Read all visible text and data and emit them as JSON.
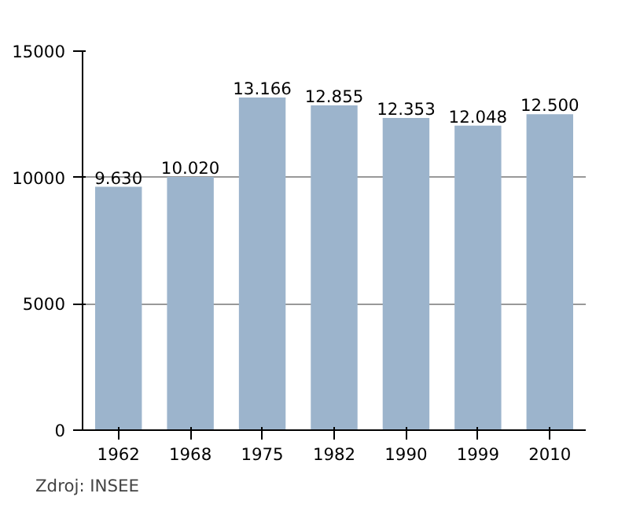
{
  "chart_data": {
    "type": "bar",
    "categories": [
      "1962",
      "1968",
      "1975",
      "1982",
      "1990",
      "1999",
      "2010"
    ],
    "values": [
      9630,
      10020,
      13166,
      12855,
      12353,
      12048,
      12500
    ],
    "value_labels": [
      "9.630",
      "10.020",
      "13.166",
      "12.855",
      "12.353",
      "12.048",
      "12.500"
    ],
    "color": "#9cb4cc",
    "ylim": [
      0,
      15000
    ],
    "yticks": [
      0,
      5000,
      10000,
      15000
    ],
    "grid": "y",
    "annotations": [
      "Zdroj: INSEE"
    ]
  }
}
